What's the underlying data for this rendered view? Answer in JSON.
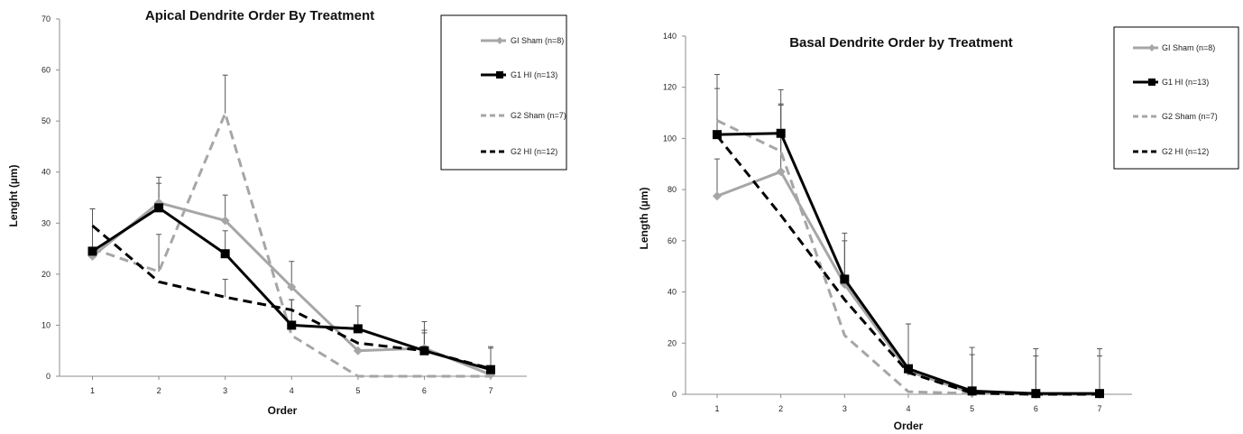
{
  "colors": {
    "gray": "#a6a6a6",
    "black": "#000000",
    "axis": "#8c8c8c",
    "errbar": "#555555"
  },
  "chart_data": [
    {
      "type": "line",
      "title": "Apical Dendrite Order By Treatment",
      "xlabel": "Order",
      "ylabel": "Lenght (µm)",
      "categories": [
        "1",
        "2",
        "3",
        "4",
        "5",
        "6",
        "7"
      ],
      "ylim": [
        0,
        70
      ],
      "yticks": [
        "0",
        "10",
        "20",
        "30",
        "40",
        "50",
        "60",
        "70"
      ],
      "grid": false,
      "legend_position": "top-right",
      "series": [
        {
          "name": "GI Sham (n=8)",
          "color": "gray",
          "style": "solid",
          "marker": "diamond",
          "values": [
            23.5,
            34,
            30.5,
            17.5,
            5,
            5.5,
            0.3
          ],
          "errors": [
            0,
            5,
            5,
            5,
            0,
            5.2,
            0
          ]
        },
        {
          "name": "G1 HI (n=13)",
          "color": "black",
          "style": "solid",
          "marker": "square",
          "values": [
            24.5,
            33,
            24,
            10,
            9.3,
            5,
            1.3
          ],
          "errors": [
            8.3,
            4.8,
            4.5,
            5,
            4.5,
            4,
            4.5
          ]
        },
        {
          "name": "G2 Sham (n=7)",
          "color": "gray",
          "style": "dashed",
          "marker": "none",
          "values": [
            25,
            20.5,
            51.5,
            8,
            0,
            0,
            0
          ],
          "errors": [
            0,
            7.3,
            7.5,
            0,
            0,
            0,
            0
          ]
        },
        {
          "name": "G2 HI (n=12)",
          "color": "black",
          "style": "dashed",
          "marker": "none",
          "values": [
            29.5,
            18.5,
            15.5,
            13,
            6.5,
            5,
            1.5
          ],
          "errors": [
            3.3,
            0,
            3.5,
            2,
            0,
            3.5,
            4
          ]
        }
      ]
    },
    {
      "type": "line",
      "title": "Basal Dendrite Order by Treatment",
      "xlabel": "Order",
      "ylabel": "Length (µm)",
      "categories": [
        "1",
        "2",
        "3",
        "4",
        "5",
        "6",
        "7"
      ],
      "ylim": [
        0,
        140
      ],
      "yticks": [
        "0",
        "20",
        "40",
        "60",
        "80",
        "100",
        "120",
        "140"
      ],
      "grid": false,
      "legend_position": "top-right",
      "series": [
        {
          "name": "GI Sham (n=8)",
          "color": "gray",
          "style": "solid",
          "marker": "diamond",
          "values": [
            77.5,
            87,
            43,
            9,
            0.5,
            0,
            0
          ],
          "errors": [
            14.5,
            26,
            20,
            18.5,
            15,
            15,
            15
          ]
        },
        {
          "name": "G1 HI (n=13)",
          "color": "black",
          "style": "solid",
          "marker": "square",
          "values": [
            101.5,
            102,
            45,
            10,
            1.3,
            0.3,
            0.3
          ],
          "errors": [
            18,
            11.5,
            15,
            17.5,
            17,
            17.5,
            17.5
          ]
        },
        {
          "name": "G2 Sham (n=7)",
          "color": "gray",
          "style": "dashed",
          "marker": "none",
          "values": [
            107,
            95,
            23,
            1,
            0.3,
            0,
            0
          ],
          "errors": [
            18,
            24,
            0,
            0,
            0,
            0,
            0
          ]
        },
        {
          "name": "G2 HI (n=12)",
          "color": "black",
          "style": "dashed",
          "marker": "none",
          "values": [
            101,
            70,
            37,
            8.5,
            0.5,
            0,
            0
          ],
          "errors": [
            0,
            0,
            0,
            0,
            0,
            0,
            0
          ]
        }
      ]
    }
  ]
}
